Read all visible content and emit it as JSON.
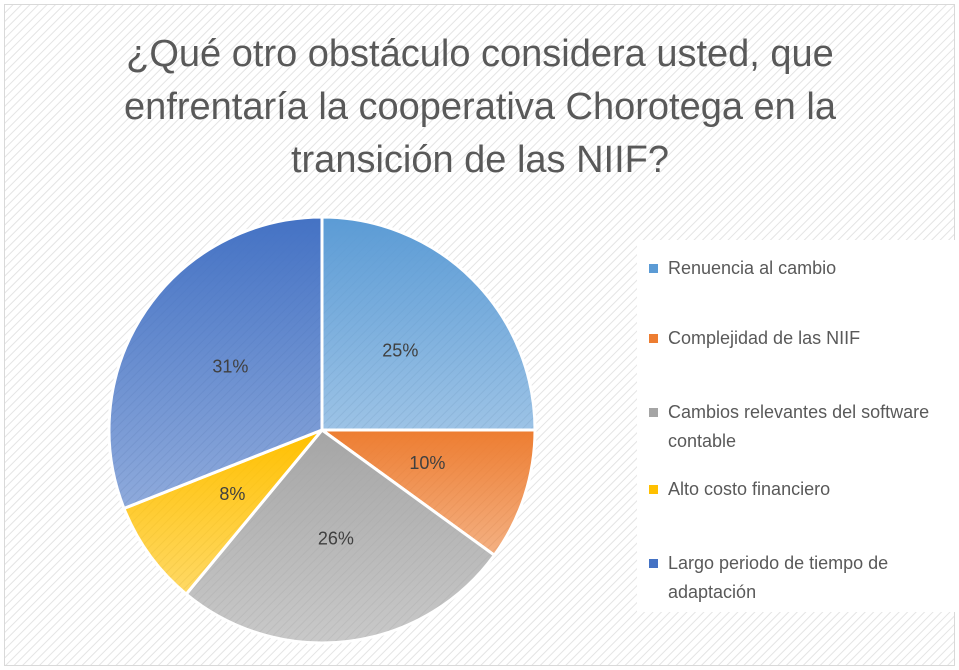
{
  "chart_data": {
    "type": "pie",
    "title": "¿Qué otro obstáculo considera usted, que enfrentaría la cooperativa Chorotega en la transición de las NIIF?",
    "categories": [
      "Renuencia al cambio",
      "Complejidad de las NIIF",
      "Cambios relevantes del software contable",
      "Alto costo financiero",
      "Largo periodo de tiempo de adaptación"
    ],
    "values": [
      25,
      10,
      26,
      8,
      31
    ],
    "value_labels": [
      "25%",
      "10%",
      "26%",
      "8%",
      "31%"
    ],
    "colors": [
      "#5b9bd5",
      "#ed7d31",
      "#a5a5a5",
      "#ffc000",
      "#4472c4"
    ],
    "legend": "right"
  }
}
